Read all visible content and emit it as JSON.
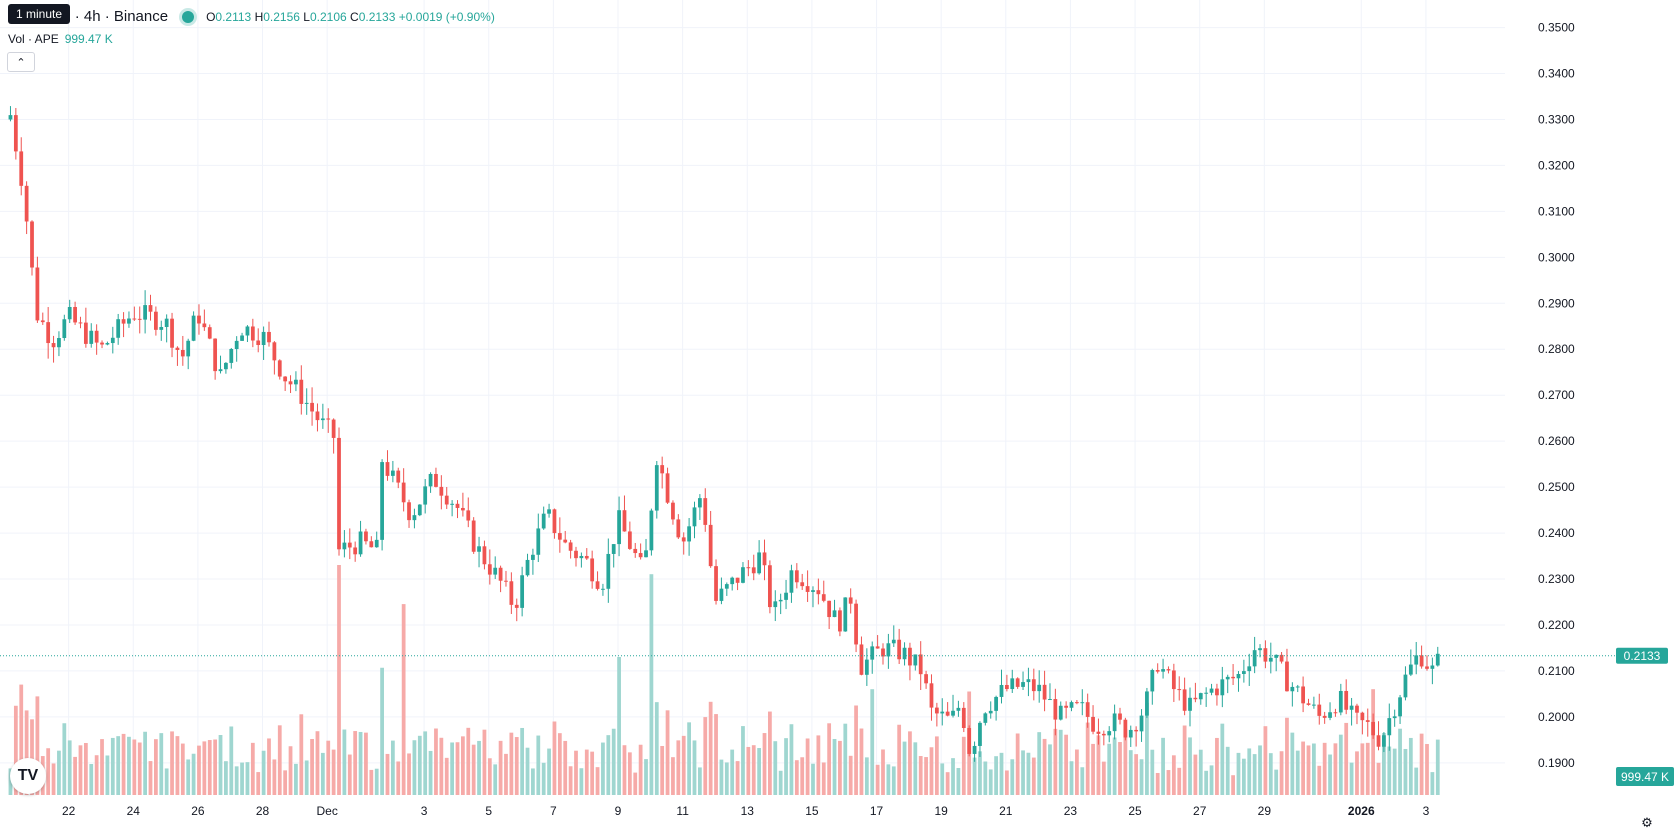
{
  "legend": {
    "title": "TetherUS · 4h · Binance",
    "o_label": "O",
    "o_value": "0.2113",
    "h_label": "H",
    "h_value": "0.2156",
    "l_label": "L",
    "l_value": "0.2106",
    "c_label": "C",
    "c_value": "0.2133",
    "change": "+0.0019 (+0.90%)"
  },
  "volume_legend": {
    "label": "Vol · APE",
    "value": "999.47 K"
  },
  "tooltip": {
    "text": "1 minute"
  },
  "price_axis": {
    "ticks": [
      "0.3500",
      "0.3400",
      "0.3300",
      "0.3200",
      "0.3100",
      "0.3000",
      "0.2900",
      "0.2800",
      "0.2700",
      "0.2600",
      "0.2500",
      "0.2400",
      "0.2300",
      "0.2200",
      "0.2100",
      "0.2000",
      "0.1900"
    ],
    "last_price_label": "0.2133",
    "volume_label": "999.47 K"
  },
  "time_axis": {
    "ticks": [
      {
        "label": "22",
        "day": 22
      },
      {
        "label": "24",
        "day": 24
      },
      {
        "label": "26",
        "day": 26
      },
      {
        "label": "28",
        "day": 28
      },
      {
        "label": "Dec",
        "day": 30
      },
      {
        "label": "3",
        "day": 33
      },
      {
        "label": "5",
        "day": 35
      },
      {
        "label": "7",
        "day": 37
      },
      {
        "label": "9",
        "day": 39
      },
      {
        "label": "11",
        "day": 41
      },
      {
        "label": "13",
        "day": 43
      },
      {
        "label": "15",
        "day": 45
      },
      {
        "label": "17",
        "day": 47
      },
      {
        "label": "19",
        "day": 49
      },
      {
        "label": "21",
        "day": 51
      },
      {
        "label": "23",
        "day": 53
      },
      {
        "label": "25",
        "day": 55
      },
      {
        "label": "27",
        "day": 57
      },
      {
        "label": "29",
        "day": 59
      },
      {
        "label": "2026",
        "day": 62
      },
      {
        "label": "3",
        "day": 64
      }
    ]
  },
  "colors": {
    "up": "#26a69a",
    "down": "#ef5350",
    "up_vol": "#9fd6d0",
    "down_vol": "#f6aaa8",
    "grid": "#f0f3fa",
    "text": "#131722"
  },
  "chart_data": {
    "type": "candlestick",
    "interval": "4h",
    "series_name": "TetherUS · 4h · Binance",
    "y_range": [
      0.183,
      0.356
    ],
    "last_close": 0.2133,
    "key_points": [
      {
        "day": 20.2,
        "close": 0.331
      },
      {
        "day": 20.6,
        "close": 0.315
      },
      {
        "day": 21.0,
        "close": 0.288
      },
      {
        "day": 21.5,
        "close": 0.282
      },
      {
        "day": 22.0,
        "close": 0.287
      },
      {
        "day": 23.0,
        "close": 0.28
      },
      {
        "day": 24.0,
        "close": 0.288
      },
      {
        "day": 25.0,
        "close": 0.286
      },
      {
        "day": 25.5,
        "close": 0.278
      },
      {
        "day": 26.0,
        "close": 0.288
      },
      {
        "day": 26.7,
        "close": 0.274
      },
      {
        "day": 27.3,
        "close": 0.285
      },
      {
        "day": 28.0,
        "close": 0.283
      },
      {
        "day": 28.7,
        "close": 0.274
      },
      {
        "day": 29.2,
        "close": 0.27
      },
      {
        "day": 29.8,
        "close": 0.264
      },
      {
        "day": 30.2,
        "close": 0.261
      },
      {
        "day": 30.3,
        "close": 0.236
      },
      {
        "day": 31.0,
        "close": 0.238
      },
      {
        "day": 31.6,
        "close": 0.236
      },
      {
        "day": 31.7,
        "close": 0.256
      },
      {
        "day": 32.3,
        "close": 0.248
      },
      {
        "day": 32.6,
        "close": 0.244
      },
      {
        "day": 33.3,
        "close": 0.252
      },
      {
        "day": 34.0,
        "close": 0.246
      },
      {
        "day": 34.6,
        "close": 0.237
      },
      {
        "day": 35.3,
        "close": 0.23
      },
      {
        "day": 35.8,
        "close": 0.224
      },
      {
        "day": 36.3,
        "close": 0.236
      },
      {
        "day": 36.8,
        "close": 0.244
      },
      {
        "day": 37.4,
        "close": 0.237
      },
      {
        "day": 38.0,
        "close": 0.234
      },
      {
        "day": 38.5,
        "close": 0.229
      },
      {
        "day": 39.0,
        "close": 0.243
      },
      {
        "day": 39.8,
        "close": 0.231
      },
      {
        "day": 40.2,
        "close": 0.257
      },
      {
        "day": 40.6,
        "close": 0.247
      },
      {
        "day": 41.0,
        "close": 0.238
      },
      {
        "day": 41.6,
        "close": 0.249
      },
      {
        "day": 42.0,
        "close": 0.225
      },
      {
        "day": 42.8,
        "close": 0.231
      },
      {
        "day": 43.4,
        "close": 0.235
      },
      {
        "day": 43.8,
        "close": 0.222
      },
      {
        "day": 44.4,
        "close": 0.232
      },
      {
        "day": 45.2,
        "close": 0.228
      },
      {
        "day": 45.8,
        "close": 0.22
      },
      {
        "day": 46.2,
        "close": 0.226
      },
      {
        "day": 46.5,
        "close": 0.211
      },
      {
        "day": 47.2,
        "close": 0.215
      },
      {
        "day": 47.8,
        "close": 0.214
      },
      {
        "day": 48.4,
        "close": 0.21
      },
      {
        "day": 48.7,
        "close": 0.201
      },
      {
        "day": 49.3,
        "close": 0.199
      },
      {
        "day": 49.6,
        "close": 0.203
      },
      {
        "day": 49.9,
        "close": 0.192
      },
      {
        "day": 50.3,
        "close": 0.202
      },
      {
        "day": 51.0,
        "close": 0.206
      },
      {
        "day": 51.6,
        "close": 0.207
      },
      {
        "day": 52.0,
        "close": 0.206
      },
      {
        "day": 52.7,
        "close": 0.2
      },
      {
        "day": 53.3,
        "close": 0.202
      },
      {
        "day": 53.8,
        "close": 0.198
      },
      {
        "day": 54.3,
        "close": 0.199
      },
      {
        "day": 54.8,
        "close": 0.197
      },
      {
        "day": 55.3,
        "close": 0.202
      },
      {
        "day": 55.7,
        "close": 0.212
      },
      {
        "day": 56.2,
        "close": 0.206
      },
      {
        "day": 56.7,
        "close": 0.202
      },
      {
        "day": 57.4,
        "close": 0.206
      },
      {
        "day": 58.2,
        "close": 0.209
      },
      {
        "day": 58.7,
        "close": 0.215
      },
      {
        "day": 59.2,
        "close": 0.213
      },
      {
        "day": 59.7,
        "close": 0.208
      },
      {
        "day": 60.2,
        "close": 0.204
      },
      {
        "day": 60.7,
        "close": 0.2
      },
      {
        "day": 61.3,
        "close": 0.204
      },
      {
        "day": 61.8,
        "close": 0.199
      },
      {
        "day": 62.2,
        "close": 0.198
      },
      {
        "day": 62.6,
        "close": 0.195
      },
      {
        "day": 63.0,
        "close": 0.202
      },
      {
        "day": 63.4,
        "close": 0.209
      },
      {
        "day": 63.8,
        "close": 0.214
      },
      {
        "day": 64.2,
        "close": 0.21
      },
      {
        "day": 64.5,
        "close": 0.2133
      }
    ],
    "volume_spikes": [
      {
        "day": 30.3,
        "rel": 1.0
      },
      {
        "day": 32.4,
        "rel": 0.83
      },
      {
        "day": 40.1,
        "rel": 0.96
      },
      {
        "day": 39.0,
        "rel": 0.6
      },
      {
        "day": 20.6,
        "rel": 0.48
      },
      {
        "day": 49.9,
        "rel": 0.45
      },
      {
        "day": 55.4,
        "rel": 0.4
      },
      {
        "day": 62.4,
        "rel": 0.46
      },
      {
        "day": 46.8,
        "rel": 0.46
      }
    ]
  }
}
